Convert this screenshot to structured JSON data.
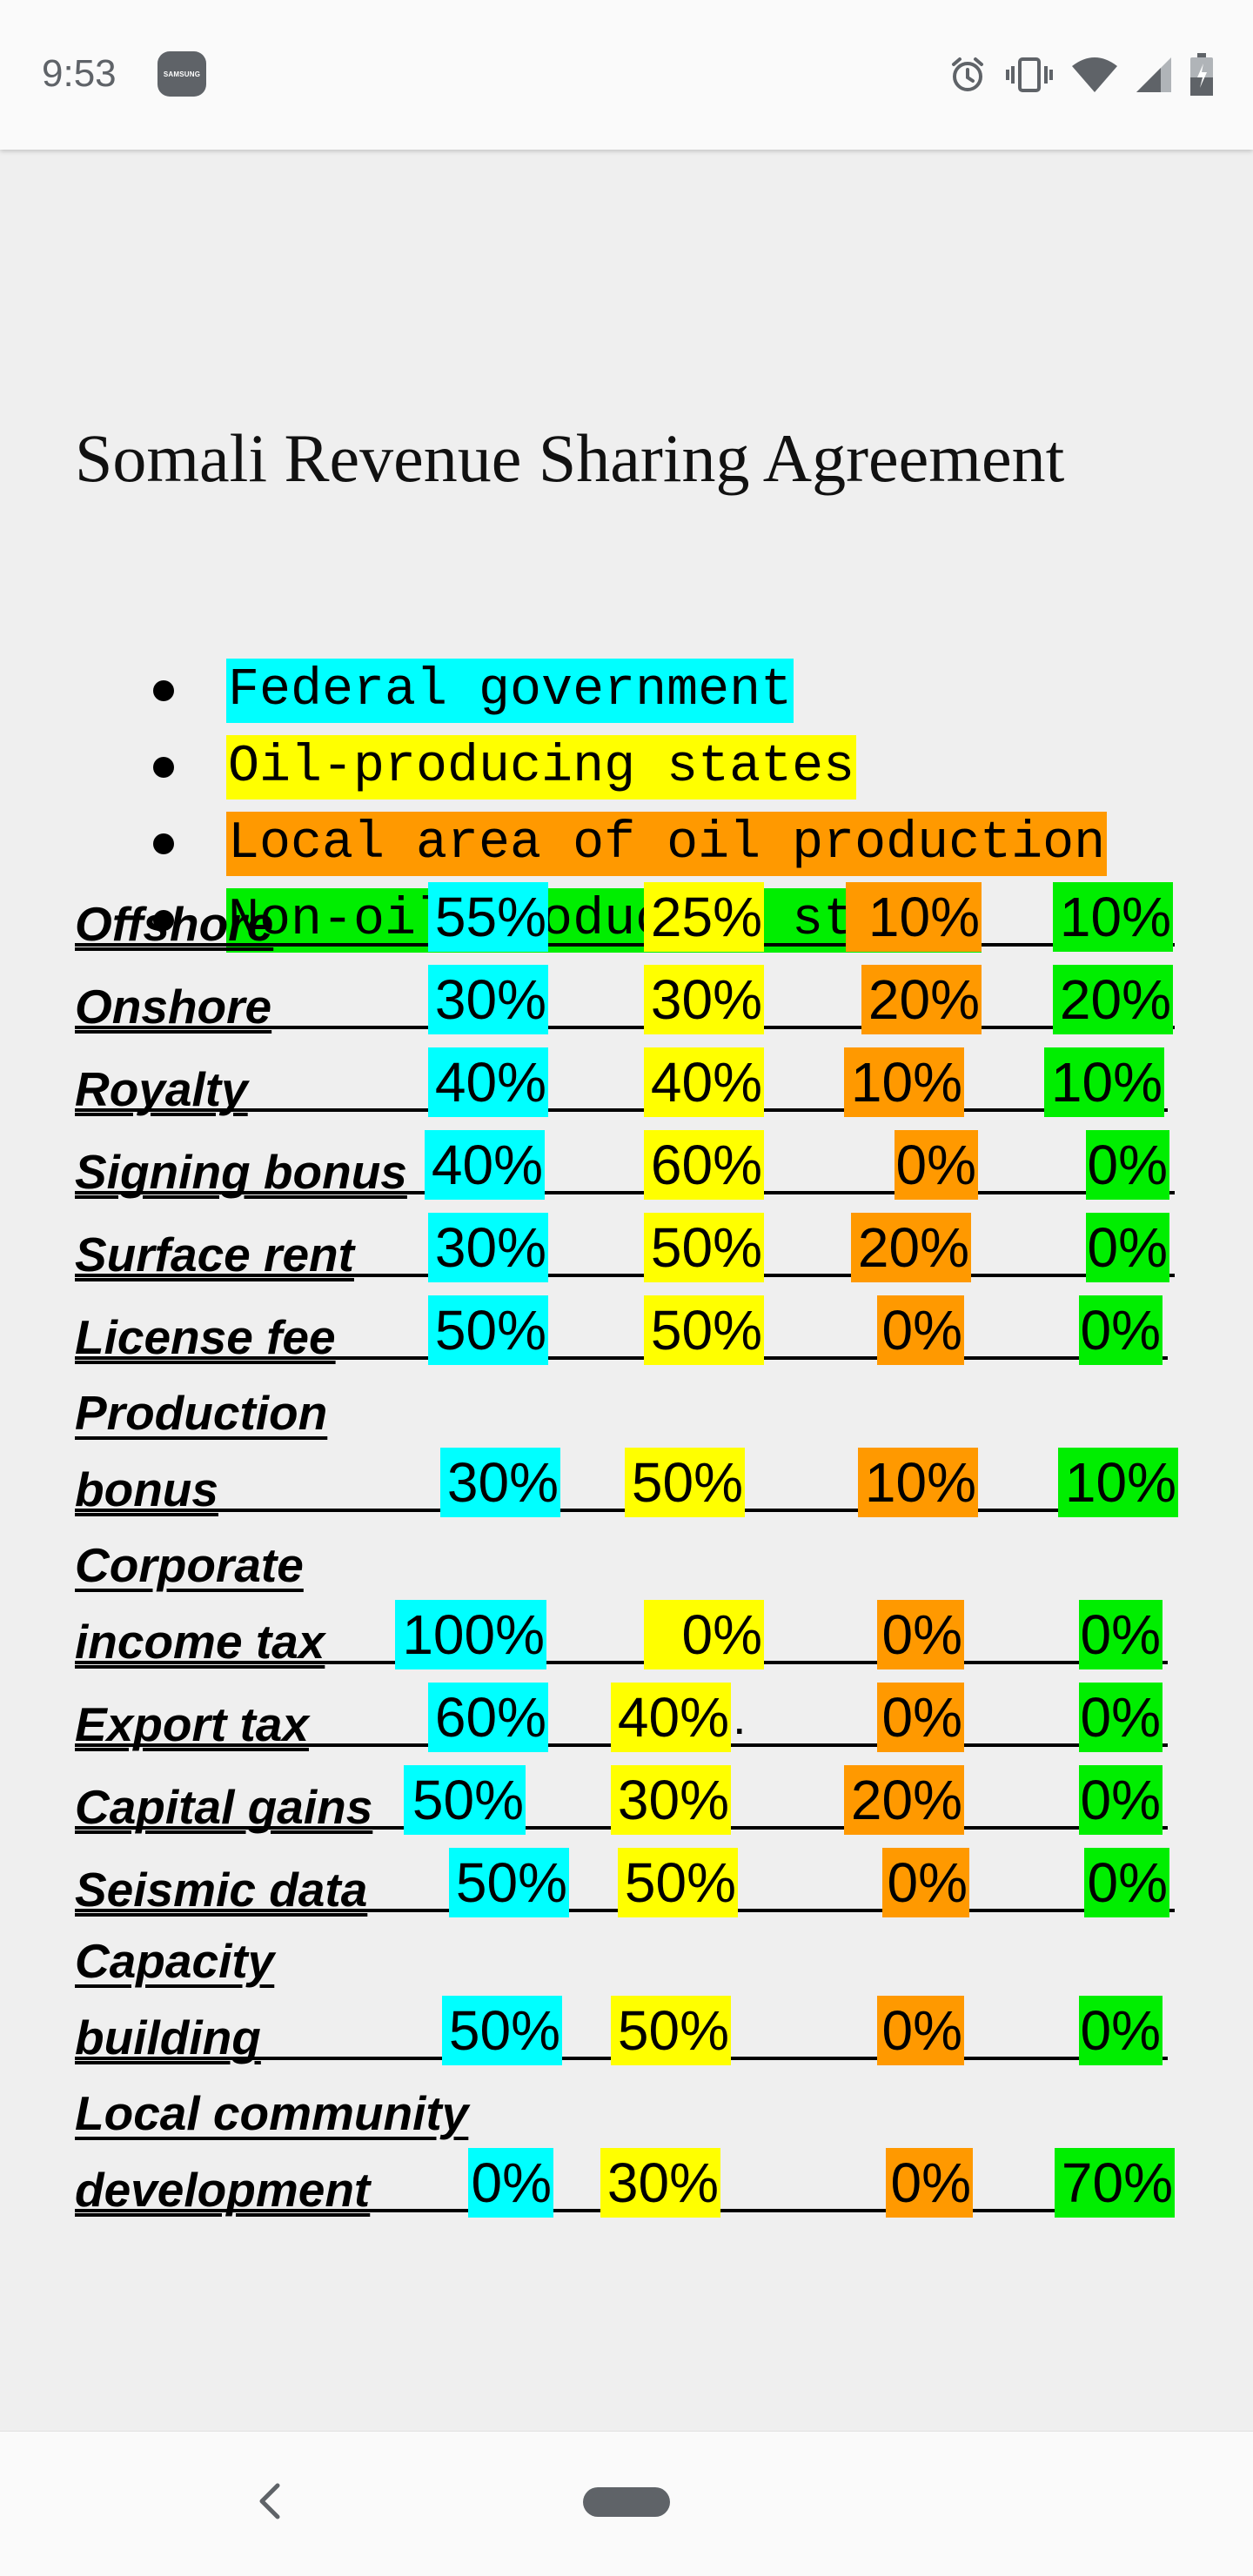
{
  "status_bar": {
    "time": "9:53",
    "notification_icon_text": "SAMSUNG",
    "icons": [
      "alarm-icon",
      "vibrate-icon",
      "wifi-icon",
      "signal-icon",
      "battery-icon"
    ]
  },
  "document": {
    "title": "Somali Revenue Sharing Agreement",
    "legend": [
      {
        "label": "Federal government",
        "color": "#00ffff"
      },
      {
        "label": "Oil-producing states",
        "color": "#ffff00"
      },
      {
        "label": "Local area of oil production",
        "color": "#ff9900"
      },
      {
        "label": "Non-oil producing states",
        "color": "#00ee00"
      }
    ],
    "rows": [
      {
        "label": "Offshore",
        "values": [
          "55%",
          "25%",
          "10%",
          "10%"
        ]
      },
      {
        "label": "Onshore",
        "values": [
          "30%",
          "30%",
          "20%",
          "20%"
        ]
      },
      {
        "label": "Royalty",
        "values": [
          "40%",
          "40%",
          "10%",
          "10%"
        ]
      },
      {
        "label": "Signing bonus",
        "values": [
          "40%",
          "60%",
          "0%",
          "0%"
        ]
      },
      {
        "label": "Surface rent",
        "values": [
          "30%",
          "50%",
          "20%",
          "0%"
        ]
      },
      {
        "label": "License fee",
        "values": [
          "50%",
          "50%",
          "0%",
          "0%"
        ]
      },
      {
        "label_line1": "Production",
        "label_line2": "bonus",
        "values": [
          "30%",
          "50%",
          "10%",
          "10%"
        ]
      },
      {
        "label_line1": "Corporate",
        "label_line2": "income tax",
        "values": [
          "100%",
          "0%",
          "0%",
          "0%"
        ]
      },
      {
        "label": "Export tax",
        "values": [
          "60%",
          "40%",
          "0%",
          "0%"
        ],
        "trailing": "."
      },
      {
        "label": "Capital gains",
        "values": [
          "50%",
          "30%",
          "20%",
          "0%"
        ]
      },
      {
        "label": "Seismic data",
        "values": [
          "50%",
          "50%",
          "0%",
          "0%"
        ]
      },
      {
        "label_line1": "Capacity",
        "label_line2": "building",
        "values": [
          "50%",
          "50%",
          "0%",
          "0%"
        ]
      },
      {
        "label_line1": "Local community",
        "label_line2": "development",
        "values": [
          "0%",
          "30%",
          "0%",
          "70%"
        ]
      }
    ]
  },
  "nav_bar": {
    "back_icon": "chevron-left-icon",
    "home_icon": "home-pill-icon"
  }
}
